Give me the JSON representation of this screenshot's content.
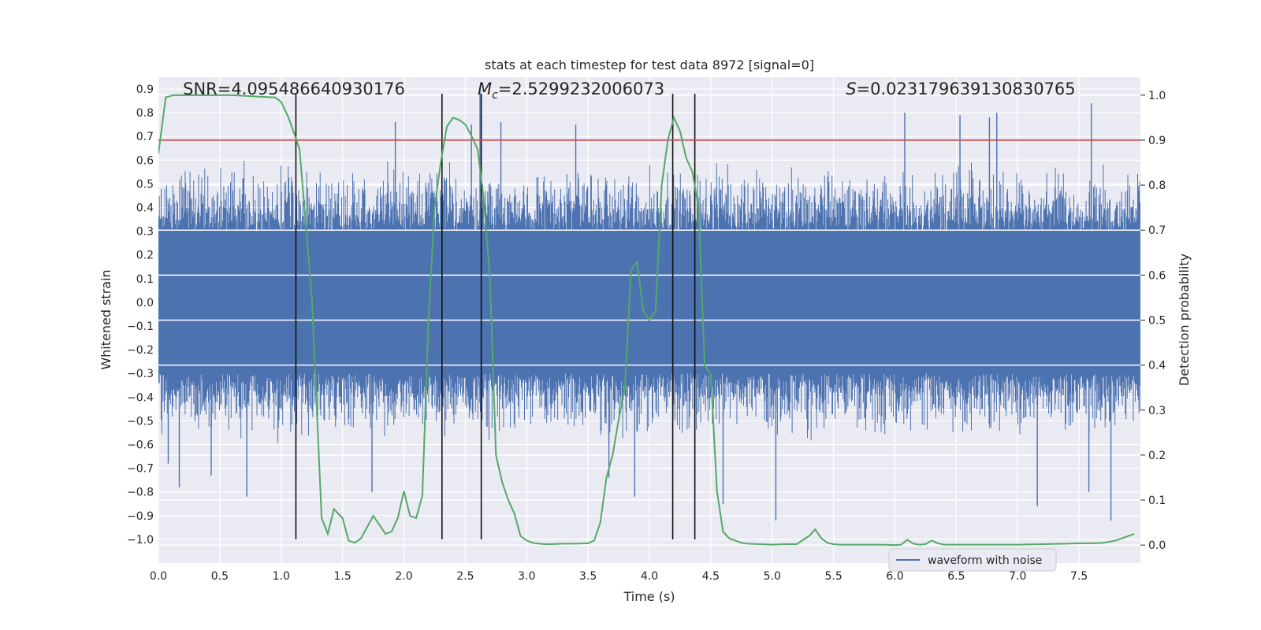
{
  "chart_data": {
    "type": "line",
    "title": "stats at each timestep for test data 8972 [signal=0]",
    "xlabel": "Time (s)",
    "ylabel_left": "Whitened strain",
    "ylabel_right": "Detection probability",
    "xlim": [
      0.0,
      8.0
    ],
    "ylim_left": [
      -1.1,
      0.95
    ],
    "ylim_right": [
      -0.04,
      1.04
    ],
    "x_ticks": [
      0.0,
      0.5,
      1.0,
      1.5,
      2.0,
      2.5,
      3.0,
      3.5,
      4.0,
      4.5,
      5.0,
      5.5,
      6.0,
      6.5,
      7.0,
      7.5
    ],
    "x_tick_labels": [
      "0.0",
      "0.5",
      "1.0",
      "1.5",
      "2.0",
      "2.5",
      "3.0",
      "3.5",
      "4.0",
      "4.5",
      "5.0",
      "5.5",
      "6.0",
      "6.5",
      "7.0",
      "7.5"
    ],
    "y_left_ticks": [
      0.9,
      0.8,
      0.7,
      0.6,
      0.5,
      0.4,
      0.3,
      0.2,
      0.1,
      0.0,
      -0.1,
      -0.2,
      -0.3,
      -0.4,
      -0.5,
      -0.6,
      -0.7,
      -0.8,
      -0.9,
      -1.0
    ],
    "y_left_tick_labels": [
      "0.9",
      "0.8",
      "0.7",
      "0.6",
      "0.5",
      "0.4",
      "0.3",
      "0.2",
      "0.1",
      "0.0",
      "−0.1",
      "−0.2",
      "−0.3",
      "−0.4",
      "−0.5",
      "−0.6",
      "−0.7",
      "−0.8",
      "−0.9",
      "−1.0"
    ],
    "y_right_ticks": [
      1.0,
      0.9,
      0.8,
      0.7,
      0.6,
      0.5,
      0.4,
      0.3,
      0.2,
      0.1,
      0.0
    ],
    "y_right_tick_labels": [
      "1.0",
      "0.9",
      "0.8",
      "0.7",
      "0.6",
      "0.5",
      "0.4",
      "0.3",
      "0.2",
      "0.1",
      "0.0"
    ],
    "grid": true,
    "legend": {
      "entries": [
        "waveform with noise"
      ],
      "placement": "lower-right"
    },
    "annotations": {
      "snr": {
        "label": "SNR=4.095486640930176",
        "x": 0.2,
        "y": 0.9
      },
      "mc": {
        "symbol": "M",
        "subscript": "c",
        "value": "=2.5299232006073",
        "x": 2.6,
        "y": 0.9
      },
      "s": {
        "symbol": "S",
        "value": "=0.023179639130830765",
        "x": 5.6,
        "y": 0.9
      }
    },
    "threshold": {
      "value": 0.9,
      "axis": "right",
      "color": "#c44e52"
    },
    "vertical_lines": [
      {
        "x": 1.12,
        "y_top": 0.88,
        "y_bottom": -1.0
      },
      {
        "x": 2.31,
        "y_top": 0.88,
        "y_bottom": -1.0
      },
      {
        "x": 2.63,
        "y_top": 0.88,
        "y_bottom": -1.0
      },
      {
        "x": 4.19,
        "y_top": 0.88,
        "y_bottom": -1.0
      },
      {
        "x": 4.37,
        "y_top": 0.88,
        "y_bottom": -1.0
      }
    ],
    "series": [
      {
        "name": "waveform with noise",
        "axis": "left",
        "color": "#4c72b0",
        "generated": true,
        "core_amplitude": 0.3,
        "typical_peak": 0.6,
        "sample_count": 1600,
        "notable_peaks": [
          {
            "x": 0.08,
            "value": -0.68
          },
          {
            "x": 0.17,
            "value": -0.78
          },
          {
            "x": 0.43,
            "value": -0.73
          },
          {
            "x": 0.72,
            "value": -0.82
          },
          {
            "x": 1.12,
            "value": -0.76
          },
          {
            "x": 1.74,
            "value": -0.8
          },
          {
            "x": 1.93,
            "value": 0.76
          },
          {
            "x": 2.55,
            "value": 0.75
          },
          {
            "x": 2.62,
            "value": 0.9
          },
          {
            "x": 2.79,
            "value": 0.76
          },
          {
            "x": 3.4,
            "value": 0.75
          },
          {
            "x": 3.67,
            "value": -0.74
          },
          {
            "x": 3.88,
            "value": -0.82
          },
          {
            "x": 4.37,
            "value": -0.8
          },
          {
            "x": 4.6,
            "value": -0.85
          },
          {
            "x": 5.03,
            "value": -0.92
          },
          {
            "x": 6.08,
            "value": 0.8
          },
          {
            "x": 6.53,
            "value": 0.79
          },
          {
            "x": 6.77,
            "value": 0.78
          },
          {
            "x": 6.83,
            "value": 0.8
          },
          {
            "x": 7.16,
            "value": -0.86
          },
          {
            "x": 7.6,
            "value": 0.84
          },
          {
            "x": 7.58,
            "value": -0.8
          },
          {
            "x": 7.76,
            "value": -0.92
          }
        ]
      },
      {
        "name": "detection probability",
        "axis": "right",
        "color": "#55a868",
        "x": [
          0.0,
          0.06,
          0.12,
          0.3,
          0.6,
          0.95,
          1.0,
          1.06,
          1.1,
          1.15,
          1.25,
          1.33,
          1.38,
          1.43,
          1.5,
          1.55,
          1.6,
          1.65,
          1.7,
          1.75,
          1.8,
          1.85,
          1.9,
          1.95,
          2.0,
          2.05,
          2.1,
          2.15,
          2.2,
          2.25,
          2.3,
          2.35,
          2.4,
          2.45,
          2.5,
          2.55,
          2.6,
          2.65,
          2.7,
          2.75,
          2.8,
          2.85,
          2.9,
          2.95,
          3.0,
          3.05,
          3.1,
          3.15,
          3.2,
          3.3,
          3.4,
          3.5,
          3.55,
          3.6,
          3.65,
          3.7,
          3.75,
          3.8,
          3.85,
          3.9,
          3.95,
          4.0,
          4.05,
          4.1,
          4.15,
          4.2,
          4.25,
          4.3,
          4.35,
          4.4,
          4.45,
          4.5,
          4.55,
          4.6,
          4.65,
          4.7,
          4.75,
          4.8,
          4.9,
          5.0,
          5.1,
          5.2,
          5.3,
          5.35,
          5.4,
          5.45,
          5.5,
          5.55,
          5.6,
          5.7,
          5.8,
          5.9,
          6.0,
          6.05,
          6.1,
          6.15,
          6.2,
          6.25,
          6.3,
          6.35,
          6.4,
          6.45,
          6.5,
          6.6,
          6.8,
          7.0,
          7.2,
          7.4,
          7.5,
          7.6,
          7.7,
          7.8,
          7.9,
          7.95
        ],
        "values": [
          0.87,
          0.995,
          1.0,
          1.0,
          1.0,
          0.995,
          0.985,
          0.95,
          0.92,
          0.88,
          0.55,
          0.06,
          0.025,
          0.08,
          0.06,
          0.01,
          0.005,
          0.015,
          0.04,
          0.065,
          0.045,
          0.025,
          0.03,
          0.06,
          0.12,
          0.065,
          0.06,
          0.11,
          0.5,
          0.75,
          0.85,
          0.93,
          0.95,
          0.945,
          0.935,
          0.91,
          0.88,
          0.77,
          0.6,
          0.2,
          0.14,
          0.1,
          0.07,
          0.02,
          0.01,
          0.005,
          0.003,
          0.002,
          0.002,
          0.003,
          0.003,
          0.004,
          0.01,
          0.05,
          0.15,
          0.2,
          0.28,
          0.35,
          0.61,
          0.63,
          0.52,
          0.5,
          0.52,
          0.8,
          0.9,
          0.95,
          0.92,
          0.86,
          0.83,
          0.75,
          0.4,
          0.38,
          0.12,
          0.03,
          0.015,
          0.01,
          0.005,
          0.003,
          0.002,
          0.001,
          0.002,
          0.002,
          0.02,
          0.035,
          0.015,
          0.005,
          0.002,
          0.001,
          0.001,
          0.001,
          0.001,
          0.001,
          0.0,
          0.001,
          0.012,
          0.003,
          0.001,
          0.002,
          0.01,
          0.004,
          0.001,
          0.001,
          0.001,
          0.001,
          0.001,
          0.001,
          0.002,
          0.003,
          0.004,
          0.004,
          0.005,
          0.01,
          0.02,
          0.025
        ]
      }
    ]
  }
}
